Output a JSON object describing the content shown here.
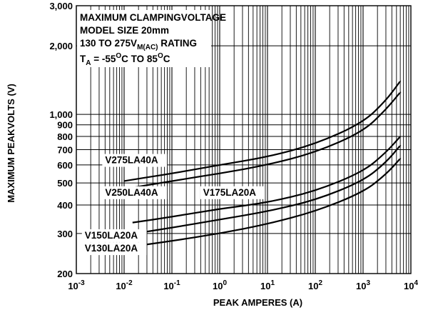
{
  "chart_data": {
    "type": "line",
    "title_lines": [
      "MAXIMUM CLAMPINGVOLTAGE",
      "MODEL SIZE 20mm"
    ],
    "rating_line": {
      "prefix": "130 TO 275V",
      "subscript": "M(AC)",
      "suffix": " RATING"
    },
    "temp_line": {
      "t": "T",
      "t_sub": "A",
      "mid": " = -55",
      "deg1": "O",
      "mid2": "C TO 85",
      "deg2": "O",
      "end": "C"
    },
    "xlabel": "PEAK AMPERES (A)",
    "ylabel": "MAXIMUM PEAKVOLTS (V)",
    "x_scale": "log",
    "y_scale": "log",
    "xlim": [
      0.001,
      10000
    ],
    "ylim": [
      200,
      3000
    ],
    "x_ticks": [
      {
        "value": 0.001,
        "base": "10",
        "exp": "-3"
      },
      {
        "value": 0.01,
        "base": "10",
        "exp": "-2"
      },
      {
        "value": 0.1,
        "base": "10",
        "exp": "-1"
      },
      {
        "value": 1,
        "base": "10",
        "exp": "0"
      },
      {
        "value": 10,
        "base": "10",
        "exp": "1"
      },
      {
        "value": 100,
        "base": "10",
        "exp": "2"
      },
      {
        "value": 1000,
        "base": "10",
        "exp": "3"
      },
      {
        "value": 10000,
        "base": "10",
        "exp": "4"
      }
    ],
    "y_ticks": [
      {
        "value": 3000,
        "label": "3,000"
      },
      {
        "value": 2000,
        "label": "2,000"
      },
      {
        "value": 1000,
        "label": "1,000"
      },
      {
        "value": 900,
        "label": "900"
      },
      {
        "value": 800,
        "label": "800"
      },
      {
        "value": 700,
        "label": "700"
      },
      {
        "value": 600,
        "label": "600"
      },
      {
        "value": 500,
        "label": "500"
      },
      {
        "value": 400,
        "label": "400"
      },
      {
        "value": 300,
        "label": "300"
      },
      {
        "value": 200,
        "label": "200"
      }
    ],
    "y_gridlines": [
      3000,
      2000,
      1000,
      900,
      800,
      700,
      600,
      500,
      400,
      300,
      200
    ],
    "grid": true,
    "series": [
      {
        "name": "V275LA40A",
        "label_pos": [
          0.004,
          610
        ],
        "x": [
          0.01,
          0.1,
          1,
          10,
          100,
          1000,
          3000,
          6000
        ],
        "y": [
          510,
          550,
          600,
          650,
          740,
          920,
          1150,
          1400
        ]
      },
      {
        "name": "V250LA40A",
        "label_pos": [
          0.004,
          440
        ],
        "x": [
          0.01,
          0.1,
          1,
          10,
          100,
          1000,
          3000,
          6000
        ],
        "y": [
          470,
          510,
          550,
          600,
          680,
          840,
          1050,
          1250
        ]
      },
      {
        "name": "V175LA20A",
        "label_pos": [
          0.45,
          440
        ],
        "x": [
          0.015,
          0.1,
          1,
          10,
          100,
          1000,
          3000,
          6000
        ],
        "y": [
          335,
          355,
          385,
          410,
          460,
          560,
          680,
          800
        ]
      },
      {
        "name": "V150LA20A",
        "label_pos": [
          0.0015,
          285
        ],
        "x": [
          0.01,
          0.1,
          1,
          10,
          100,
          1000,
          3000,
          6000
        ],
        "y": [
          295,
          318,
          345,
          375,
          420,
          510,
          615,
          730
        ]
      },
      {
        "name": "V130LA20A",
        "label_pos": [
          0.0015,
          250
        ],
        "x": [
          0.01,
          0.1,
          1,
          10,
          100,
          1000,
          3000,
          6000
        ],
        "y": [
          260,
          278,
          300,
          330,
          375,
          455,
          545,
          640
        ]
      }
    ]
  }
}
